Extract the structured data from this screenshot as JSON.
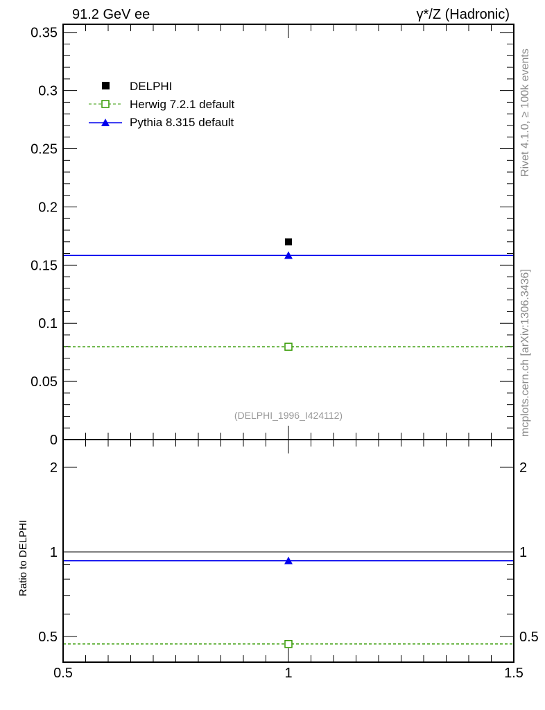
{
  "chart_data": [
    {
      "type": "scatter",
      "title_left": "91.2 GeV ee",
      "title_right": "γ*/Z (Hadronic)",
      "analysis_label": "(DELPHI_1996_I424112)",
      "side_label_top": "Rivet 4.1.0, ≥ 100k events",
      "side_label_bottom": "mcplots.cern.ch [arXiv:1306.3436]",
      "xlim": [
        0.5,
        1.5
      ],
      "ylim": [
        0,
        0.357
      ],
      "yticks": [
        "0",
        "0.05",
        "0.1",
        "0.15",
        "0.2",
        "0.25",
        "0.3",
        "0.35"
      ],
      "ytick_values": [
        0,
        0.05,
        0.1,
        0.15,
        0.2,
        0.25,
        0.3,
        0.35
      ],
      "legend": [
        "DELPHI",
        "Herwig 7.2.1 default",
        "Pythia 8.315 default"
      ],
      "legend_placement": "top-left",
      "series": [
        {
          "name": "DELPHI",
          "x": [
            1
          ],
          "y": [
            0.17
          ],
          "color": "#000000",
          "marker": "filled-square"
        },
        {
          "name": "Herwig 7.2.1 default",
          "x": [
            1
          ],
          "y": [
            0.0798
          ],
          "xerr": [
            0.5
          ],
          "color": "#339900",
          "marker": "open-square",
          "line": "dashed"
        },
        {
          "name": "Pythia 8.315 default",
          "x": [
            1
          ],
          "y": [
            0.1583
          ],
          "xerr": [
            0.5
          ],
          "color": "#0000ee",
          "marker": "filled-triangle",
          "line": "solid"
        }
      ]
    },
    {
      "type": "scatter",
      "ylabel": "Ratio to DELPHI",
      "yscale": "log",
      "xlim": [
        0.5,
        1.5
      ],
      "ylim": [
        0.405,
        2.51
      ],
      "xticks": [
        "0.5",
        "1",
        "1.5"
      ],
      "xtick_values": [
        0.5,
        1,
        1.5
      ],
      "yticks": [
        "0.5",
        "1",
        "2"
      ],
      "ytick_values": [
        0.5,
        1,
        2
      ],
      "series": [
        {
          "name": "Herwig 7.2.1 default",
          "x": [
            1
          ],
          "y": [
            0.47
          ],
          "color": "#339900"
        },
        {
          "name": "Pythia 8.315 default",
          "x": [
            1
          ],
          "y": [
            0.93
          ],
          "color": "#0000ee"
        }
      ]
    }
  ]
}
